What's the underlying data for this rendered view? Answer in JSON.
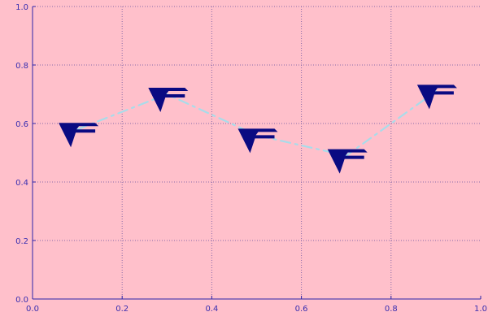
{
  "colors": {
    "background": "#ffc0cb",
    "axis": "#2d25a8",
    "grid": "#8a6aa8",
    "line": "#a8dcea",
    "marker": "#0a0a82"
  },
  "chart_data": {
    "type": "line",
    "title": "",
    "xlabel": "",
    "ylabel": "",
    "xlim": [
      0,
      1
    ],
    "ylim": [
      0,
      1
    ],
    "grid": true,
    "line_style": "dash-dot",
    "marker_icon": "chevron-f-glyph",
    "x_ticks": [
      "0.0",
      "0.2",
      "0.4",
      "0.6",
      "0.8",
      "1.0"
    ],
    "y_ticks": [
      "0.0",
      "0.2",
      "0.4",
      "0.6",
      "0.8",
      "1.0"
    ],
    "series": [
      {
        "x": [
          0.1,
          0.3,
          0.5,
          0.7,
          0.9
        ],
        "y": [
          0.58,
          0.7,
          0.56,
          0.49,
          0.71
        ]
      }
    ]
  }
}
